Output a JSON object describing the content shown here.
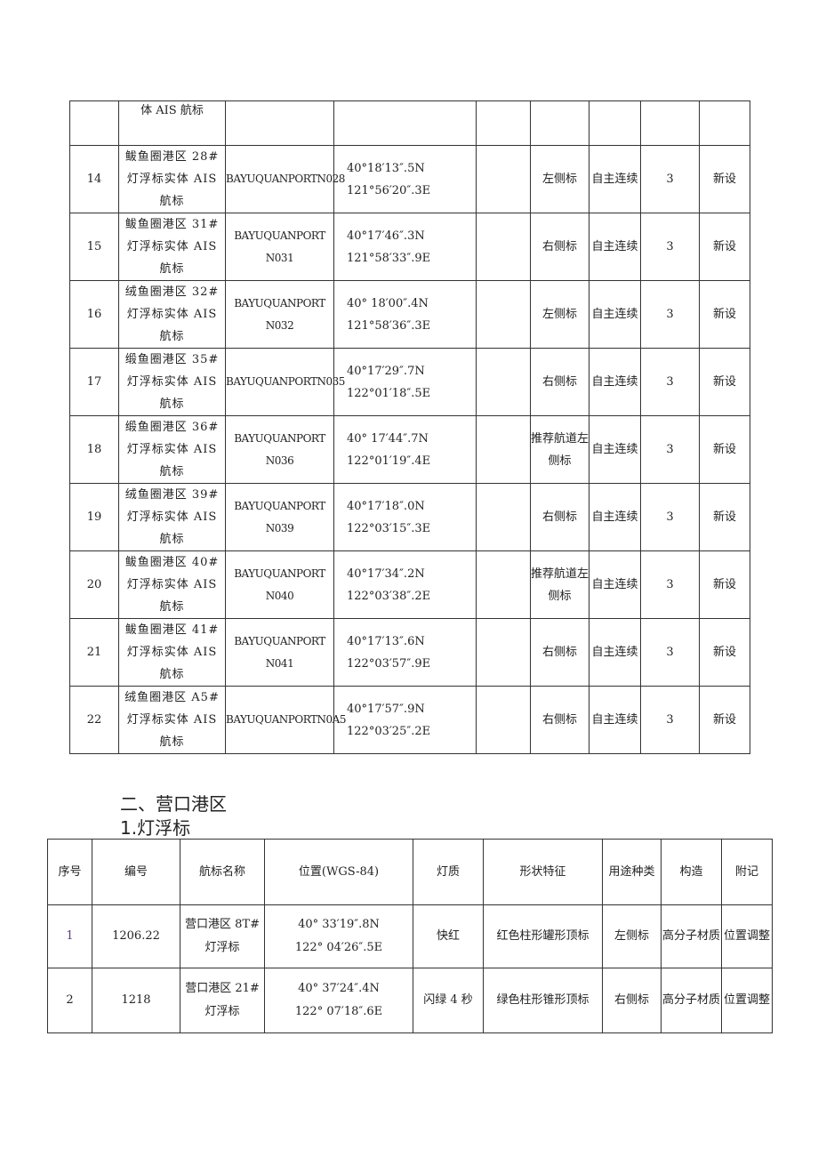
{
  "table1": {
    "continued_row": {
      "name": "体 AIS 航标"
    },
    "rows": [
      {
        "no": "14",
        "name": "鲅鱼圈港区 28#灯浮标实体 AIS 航标",
        "code": "BAYUQUANPORTN028",
        "lat": "40°18′13″.5N",
        "lon": "121°56′20″.3E",
        "type": "左侧标",
        "mode": "自主连续",
        "count": "3",
        "note": "新设"
      },
      {
        "no": "15",
        "name": "鲅鱼圈港区 31#灯浮标实体 AIS 航标",
        "code": "BAYUQUANPORT N031",
        "lat": "40°17′46″.3N",
        "lon": "121°58′33″.9E",
        "type": "右侧标",
        "mode": "自主连续",
        "count": "3",
        "note": "新设"
      },
      {
        "no": "16",
        "name": "绒鱼圈港区 32#灯浮标实体 AIS 航标",
        "code": "BAYUQUANPORT N032",
        "lat": "40° 18′00″.4N",
        "lon": "121°58′36″.3E",
        "type": "左侧标",
        "mode": "自主连续",
        "count": "3",
        "note": "新设"
      },
      {
        "no": "17",
        "name": "缎鱼圈港区 35#灯浮标实体 AIS 航标",
        "code": "BAYUQUANPORTN035",
        "lat": "40°17′29″.7N",
        "lon": "122°01′18″.5E",
        "type": "右侧标",
        "mode": "自主连续",
        "count": "3",
        "note": "新设"
      },
      {
        "no": "18",
        "name": "缎鱼圈港区 36#灯浮标实体 AIS 航标",
        "code": "BAYUQUANPORT N036",
        "lat": "40° 17′44″.7N",
        "lon": "122°01′19″.4E",
        "type": "推荐航道左侧标",
        "mode": "自主连续",
        "count": "3",
        "note": "新设"
      },
      {
        "no": "19",
        "name": "绒鱼圈港区 39#灯浮标实体 AIS 航标",
        "code": "BAYUQUANPORT N039",
        "lat": "40°17′18″.0N",
        "lon": "122°03′15″.3E",
        "type": "右侧标",
        "mode": "自主连续",
        "count": "3",
        "note": "新设"
      },
      {
        "no": "20",
        "name": "鲅鱼圈港区 40#灯浮标实体 AIS 航标",
        "code": "BAYUQUANPORT N040",
        "lat": "40°17′34″.2N",
        "lon": "122°03′38″.2E",
        "type": "推荐航道左侧标",
        "mode": "自主连续",
        "count": "3",
        "note": "新设"
      },
      {
        "no": "21",
        "name": "鲅鱼圈港区 41#灯浮标实体 AIS 航标",
        "code": "BAYUQUANPORT N041",
        "lat": "40°17′13″.6N",
        "lon": "122°03′57″.9E",
        "type": "右侧标",
        "mode": "自主连续",
        "count": "3",
        "note": "新设"
      },
      {
        "no": "22",
        "name": "绒鱼圈港区 A5#灯浮标实体 AIS 航标",
        "code": "BAYUQUANPORTN0A5",
        "lat": "40°17′57″.9N",
        "lon": "122°03′25″.2E",
        "type": "右侧标",
        "mode": "自主连续",
        "count": "3",
        "note": "新设"
      }
    ]
  },
  "section": {
    "heading": "二、营口港区",
    "subheading": "1.灯浮标"
  },
  "table2": {
    "headers": [
      "序号",
      "编号",
      "航标名称",
      "位置(WGS-84)",
      "灯质",
      "形状特征",
      "用途种类",
      "构造",
      "附记"
    ],
    "rows": [
      {
        "no": "1",
        "code": "1206.22",
        "name": "营口港区 8T#灯浮标",
        "lat": "40° 33′19″.8N",
        "lon": "122° 04′26″.5E",
        "light": "快红",
        "shape": "红色柱形罐形顶标",
        "use": "左侧标",
        "build": "高分子材质",
        "note": "位置调整"
      },
      {
        "no": "2",
        "code": "1218",
        "name": "营口港区 21#灯浮标",
        "lat": "40° 37′24″.4N",
        "lon": "122° 07′18″.6E",
        "light": "闪绿 4 秒",
        "shape": "绿色柱形锥形顶标",
        "use": "右侧标",
        "build": "高分子材质",
        "note": "位置调整"
      }
    ]
  }
}
